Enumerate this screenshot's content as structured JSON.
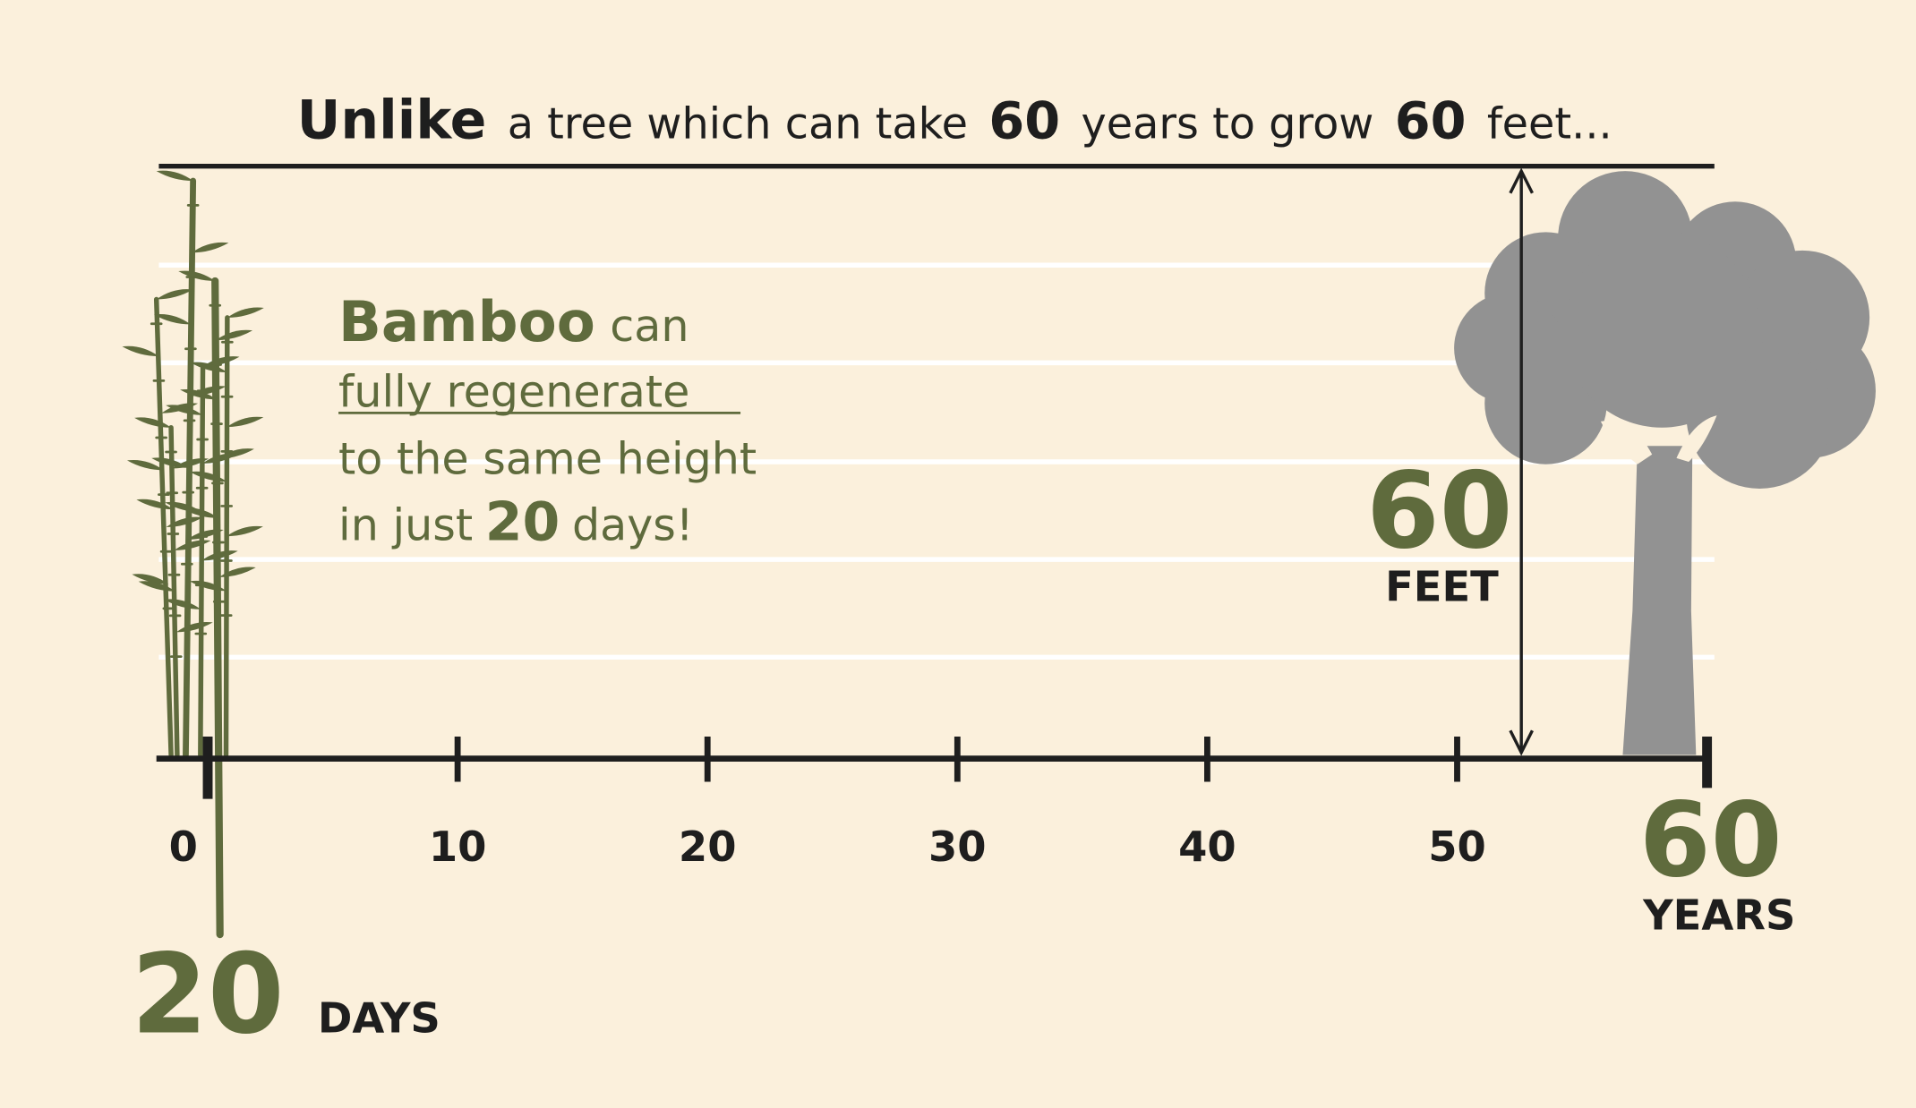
{
  "headline": {
    "lead": "Unlike",
    "part1": "a tree which can take",
    "years": "60",
    "part2": "years to grow",
    "feet": "60",
    "part3": "feet..."
  },
  "bamboo": {
    "name": "Bamboo",
    "line1_rest": "can",
    "line2": "fully regenerate",
    "line3": "to the same height",
    "line4_lead": "in just",
    "days_value": "20",
    "line4_rest": "days!"
  },
  "height": {
    "value": "60",
    "unit": "FEET"
  },
  "axis": {
    "ticks": [
      0,
      10,
      20,
      30,
      40,
      50
    ],
    "end": {
      "value": 60,
      "unit": "YEARS"
    }
  },
  "bamboo_marker": {
    "value": "20",
    "unit": "DAYS"
  }
}
